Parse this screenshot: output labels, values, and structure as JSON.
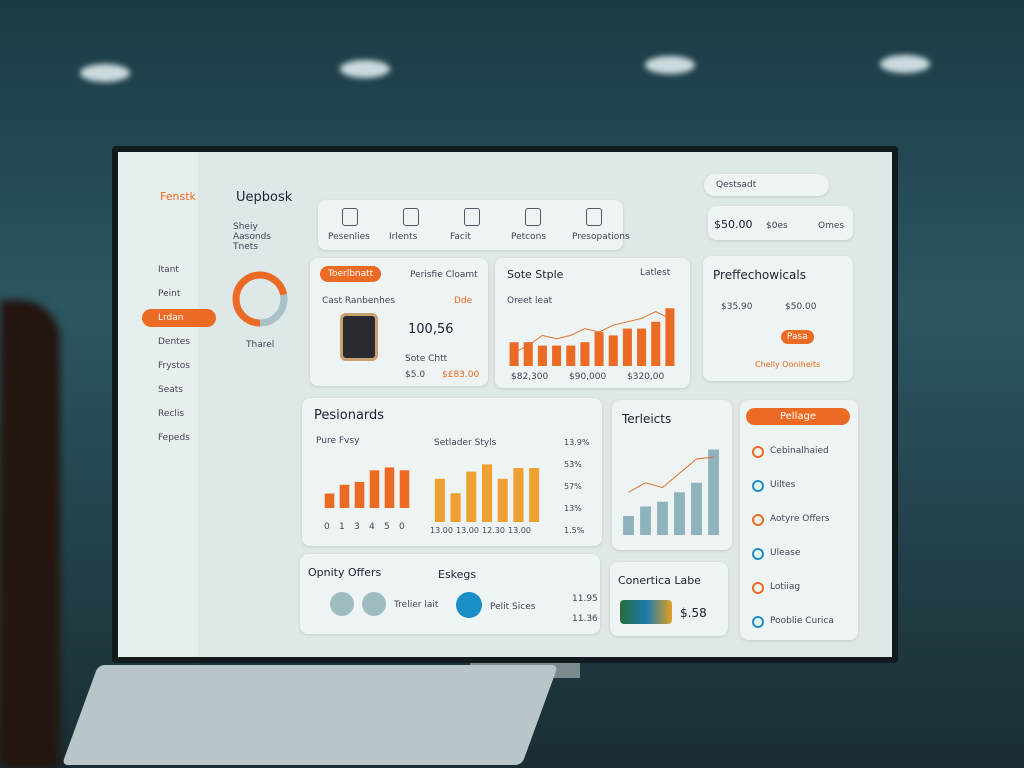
{
  "sidebar": {
    "logo": "Fenstk",
    "items": [
      "Itant",
      "Peint",
      "Lrdan",
      "Dentes",
      "Frystos",
      "Seats",
      "Reclis",
      "Fepeds"
    ]
  },
  "header": {
    "title": "Uepbosk",
    "subtitle": "Sheiy Aasonds Tnets",
    "donut_label": "Tharel",
    "donut": {
      "value": 72,
      "max": 100
    }
  },
  "toolbar": {
    "items": [
      "Pesenlies",
      "Irlents",
      "Facit",
      "Petcons",
      "Presopations"
    ],
    "search": "Qestsadt",
    "stats": [
      "$50.00",
      "$0es",
      "Omes"
    ]
  },
  "product_card": {
    "tab": "Toerlbnatt",
    "filter": "Perisfie Cloamt",
    "label": "Cast Ranbenhes",
    "dropdown": "Dde",
    "value": "100,56",
    "note": "Sote Chtt",
    "price": "$5.0",
    "price2": "$£83.00"
  },
  "sales_chart": {
    "title": "Sote Stple",
    "dropdown": "Latlest",
    "label": "Oreet leat",
    "ylim": [
      0,
      100
    ],
    "bars": [
      35,
      35,
      30,
      30,
      30,
      35,
      50,
      45,
      55,
      55,
      65,
      85
    ],
    "line": [
      20,
      30,
      45,
      40,
      45,
      55,
      50,
      60,
      65,
      70,
      80,
      70
    ],
    "x_labels": [
      "$82,300",
      "$90,000",
      "$320,00"
    ]
  },
  "pref_card": {
    "title": "Preffechowicals",
    "value1": "$35.90",
    "value2": "$50.00",
    "button": "Pasa",
    "link": "Chelly Ooniheits"
  },
  "pesionards": {
    "title": "Pesionards",
    "left_label": "Pure Fvsy",
    "right_label": "Setlader Styls",
    "ylim": [
      0,
      100
    ],
    "left_bars": [
      25,
      40,
      45,
      65,
      70,
      65
    ],
    "right_bars": [
      60,
      40,
      70,
      80,
      60,
      75,
      75
    ],
    "left_x": [
      "0",
      "1",
      "3",
      "4",
      "5",
      "0"
    ],
    "right_x": [
      "13.00",
      "13.00",
      "12.30",
      "13.00"
    ],
    "y_labels": [
      "13.9%",
      "53%",
      "57%",
      "13%",
      "1.5%"
    ]
  },
  "terleicts": {
    "title": "Terleicts",
    "ylim": [
      0,
      100
    ],
    "bars": [
      20,
      30,
      35,
      45,
      55,
      90
    ],
    "line": [
      45,
      55,
      50,
      65,
      80,
      82
    ]
  },
  "offers": {
    "title": "Opnity Offers",
    "item1": "Trelier lait",
    "title2": "Eskegs",
    "item2": "Pelit Sices",
    "values": [
      "11.95",
      "11.36"
    ]
  },
  "conertica": {
    "title": "Conertica Labe",
    "value": "$.58"
  },
  "pellage": {
    "button": "Pellage",
    "items": [
      "Cebinalhaied",
      "Uiltes",
      "Aotyre Offers",
      "Ulease",
      "Lotiiag",
      "Pooblie Curica"
    ]
  }
}
